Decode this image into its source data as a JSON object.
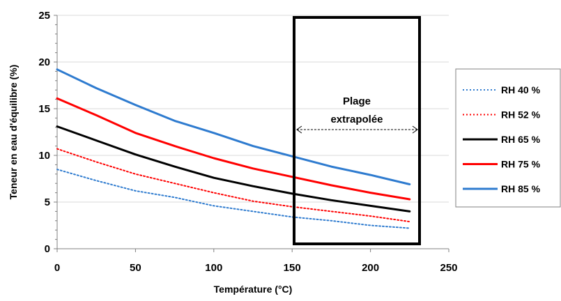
{
  "chart_data": {
    "type": "line",
    "title": "",
    "xlabel": "Température (°C)",
    "ylabel": "Teneur en eau d'équilibre (%)",
    "xlim": [
      0,
      250
    ],
    "ylim": [
      0,
      25
    ],
    "xticks": [
      0,
      50,
      100,
      150,
      200,
      250
    ],
    "yticks": [
      0,
      5,
      10,
      15,
      20,
      25
    ],
    "x_tick_labels": [
      "0",
      "50",
      "100",
      "150",
      "200",
      "250"
    ],
    "y_tick_labels": [
      "0",
      "5",
      "10",
      "15",
      "20",
      "25"
    ],
    "grid": "horizontal",
    "legend_position": "right",
    "series": [
      {
        "name": "RH 40 %",
        "color": "#2E7BCF",
        "dash": "dotted",
        "x": [
          0,
          25,
          50,
          75,
          100,
          125,
          150,
          175,
          200,
          225
        ],
        "y": [
          8.5,
          7.3,
          6.2,
          5.5,
          4.6,
          4.0,
          3.4,
          3.0,
          2.5,
          2.2
        ]
      },
      {
        "name": "RH 52 %",
        "color": "#FF0000",
        "dash": "dotted",
        "x": [
          0,
          25,
          50,
          75,
          100,
          125,
          150,
          175,
          200,
          225
        ],
        "y": [
          10.7,
          9.3,
          8.0,
          7.0,
          6.0,
          5.1,
          4.5,
          4.0,
          3.5,
          2.9
        ]
      },
      {
        "name": "RH 65 %",
        "color": "#000000",
        "dash": "solid",
        "x": [
          0,
          25,
          50,
          75,
          100,
          125,
          150,
          175,
          200,
          225
        ],
        "y": [
          13.1,
          11.6,
          10.1,
          8.8,
          7.6,
          6.7,
          5.9,
          5.2,
          4.6,
          4.0
        ]
      },
      {
        "name": "RH 75 %",
        "color": "#FF0000",
        "dash": "solid",
        "x": [
          0,
          25,
          50,
          75,
          100,
          125,
          150,
          175,
          200,
          225
        ],
        "y": [
          16.1,
          14.3,
          12.4,
          11.0,
          9.7,
          8.6,
          7.7,
          6.8,
          6.0,
          5.3
        ]
      },
      {
        "name": "RH 85 %",
        "color": "#2E7BCF",
        "dash": "solid",
        "x": [
          0,
          25,
          50,
          75,
          100,
          125,
          150,
          175,
          200,
          225
        ],
        "y": [
          19.2,
          17.2,
          15.4,
          13.7,
          12.4,
          11.0,
          9.9,
          8.8,
          7.9,
          6.9
        ]
      }
    ],
    "annotations": [
      {
        "text_lines": [
          "Plage",
          "extrapolée"
        ],
        "x_range": [
          153,
          230
        ]
      }
    ]
  }
}
